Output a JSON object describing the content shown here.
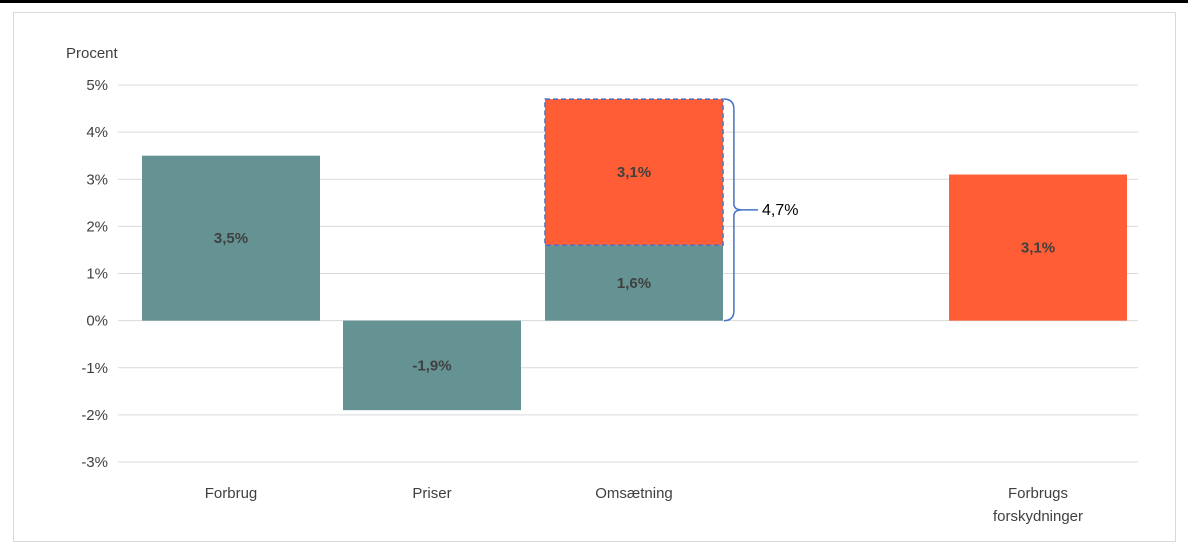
{
  "chart_data": {
    "type": "bar",
    "ylabel": "Procent",
    "ylim": [
      -3,
      5
    ],
    "yticks": [
      "5%",
      "4%",
      "3%",
      "2%",
      "1%",
      "0%",
      "-1%",
      "-2%",
      "-3%"
    ],
    "grid": true,
    "categories": [
      {
        "label": [
          "Forbrug"
        ]
      },
      {
        "label": [
          "Priser"
        ]
      },
      {
        "label": [
          "Omsætning"
        ]
      },
      {
        "label": [
          "Forbrugs",
          "forskydninger"
        ]
      }
    ],
    "segments": [
      {
        "category": 0,
        "base": 0,
        "value": 3.5,
        "label": "3,5%",
        "color": "#659393",
        "dashed": false
      },
      {
        "category": 1,
        "base": 0,
        "value": -1.9,
        "label": "-1,9%",
        "color": "#659393",
        "dashed": false
      },
      {
        "category": 2,
        "base": 0,
        "value": 1.6,
        "label": "1,6%",
        "color": "#659393",
        "dashed": false
      },
      {
        "category": 2,
        "base": 1.6,
        "value": 3.1,
        "label": "3,1%",
        "color": "#ff5d35",
        "dashed": true
      },
      {
        "category": 3,
        "base": 0,
        "value": 3.1,
        "label": "3,1%",
        "color": "#ff5d35",
        "dashed": false
      }
    ],
    "brace": {
      "category": 2,
      "from": 0,
      "to": 4.7,
      "label": "4,7%"
    }
  },
  "colors": {
    "teal": "#659393",
    "orange": "#ff5d35",
    "grid": "#d9d9d9",
    "brace": "#4472c4"
  }
}
